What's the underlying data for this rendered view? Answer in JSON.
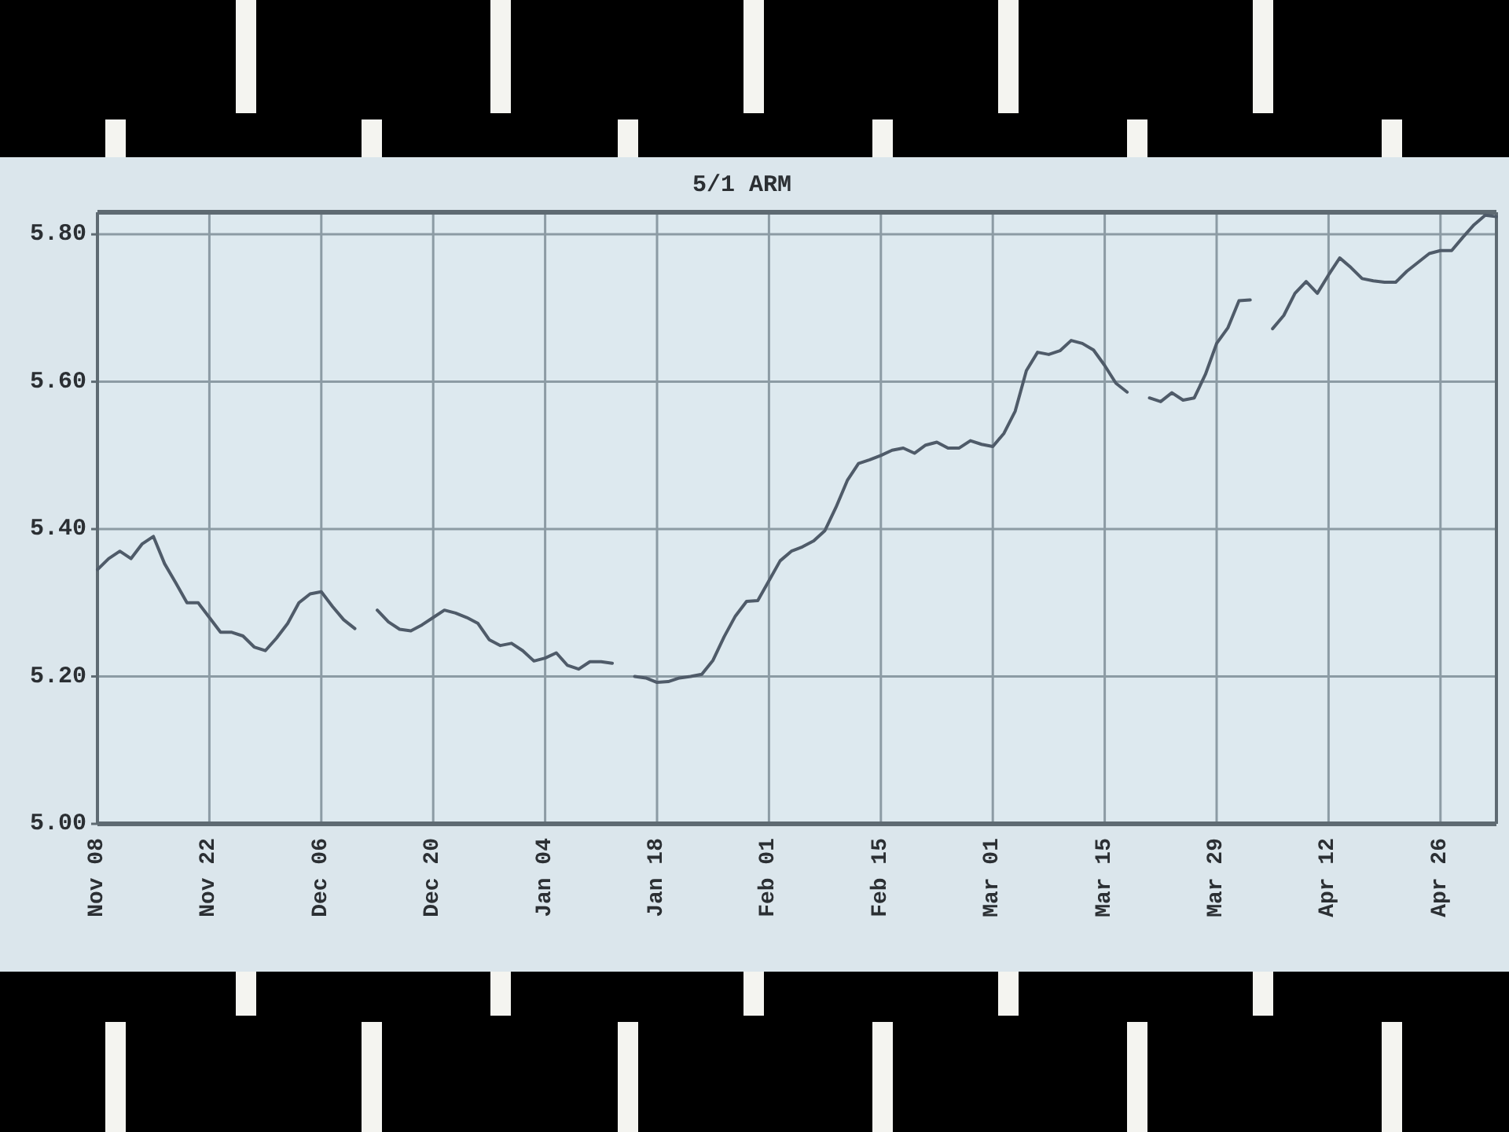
{
  "chart_data": {
    "type": "line",
    "title": "5/1 ARM",
    "categories": [
      "Nov 08",
      null,
      null,
      null,
      null,
      null,
      null,
      null,
      null,
      null,
      "Nov 22",
      null,
      null,
      null,
      null,
      null,
      null,
      null,
      null,
      null,
      "Dec 06",
      null,
      null,
      null,
      null,
      null,
      null,
      null,
      null,
      null,
      "Dec 20",
      null,
      null,
      null,
      null,
      null,
      null,
      null,
      null,
      null,
      "Jan 04",
      null,
      null,
      null,
      null,
      null,
      null,
      null,
      null,
      null,
      "Jan 18",
      null,
      null,
      null,
      null,
      null,
      null,
      null,
      null,
      null,
      "Feb 01",
      null,
      null,
      null,
      null,
      null,
      null,
      null,
      null,
      null,
      "Feb 15",
      null,
      null,
      null,
      null,
      null,
      null,
      null,
      null,
      null,
      "Mar 01",
      null,
      null,
      null,
      null,
      null,
      null,
      null,
      null,
      null,
      "Mar 15",
      null,
      null,
      null,
      null,
      null,
      null,
      null,
      null,
      null,
      "Mar 29",
      null,
      null,
      null,
      null,
      null,
      null,
      null,
      null,
      null,
      "Apr 12",
      null,
      null,
      null,
      null,
      null,
      null,
      null,
      null,
      null,
      "Apr 26",
      null,
      null,
      null,
      null,
      null
    ],
    "values": [
      5.345,
      5.36,
      5.37,
      5.36,
      5.38,
      5.39,
      5.353,
      5.327,
      5.3,
      5.3,
      5.28,
      5.26,
      5.26,
      5.255,
      5.24,
      5.235,
      5.252,
      5.272,
      5.3,
      5.312,
      5.315,
      5.295,
      5.277,
      5.265,
      null,
      5.29,
      5.274,
      5.264,
      5.262,
      5.27,
      5.28,
      5.29,
      5.286,
      5.28,
      5.272,
      5.25,
      5.242,
      5.245,
      5.235,
      5.221,
      5.225,
      5.232,
      5.215,
      5.21,
      5.22,
      5.22,
      5.218,
      null,
      5.2,
      5.198,
      5.192,
      5.193,
      5.198,
      5.2,
      5.203,
      5.222,
      5.254,
      5.282,
      5.302,
      5.303,
      5.33,
      5.357,
      5.37,
      5.376,
      5.384,
      5.398,
      5.43,
      5.466,
      5.489,
      5.494,
      5.5,
      5.507,
      5.51,
      5.503,
      5.514,
      5.518,
      5.51,
      5.51,
      5.52,
      5.515,
      5.512,
      5.53,
      5.56,
      5.615,
      5.64,
      5.637,
      5.642,
      5.656,
      5.652,
      5.643,
      5.622,
      5.598,
      5.586,
      null,
      5.578,
      5.573,
      5.585,
      5.575,
      5.578,
      5.61,
      5.652,
      5.673,
      5.71,
      5.711,
      null,
      5.672,
      5.69,
      5.72,
      5.736,
      5.72,
      5.745,
      5.768,
      5.755,
      5.74,
      5.737,
      5.735,
      5.735,
      5.75,
      5.762,
      5.774,
      5.778,
      5.778,
      5.796,
      5.813,
      5.826,
      5.824
    ],
    "color": "#4f5b69",
    "ylim": [
      5,
      5.83
    ],
    "yticks": [
      {
        "value": 5,
        "label": "5.00"
      },
      {
        "value": 5.2,
        "label": "5.20"
      },
      {
        "value": 5.4,
        "label": "5.40"
      },
      {
        "value": 5.6,
        "label": "5.60"
      },
      {
        "value": 5.8,
        "label": "5.80"
      }
    ],
    "grid": true
  }
}
